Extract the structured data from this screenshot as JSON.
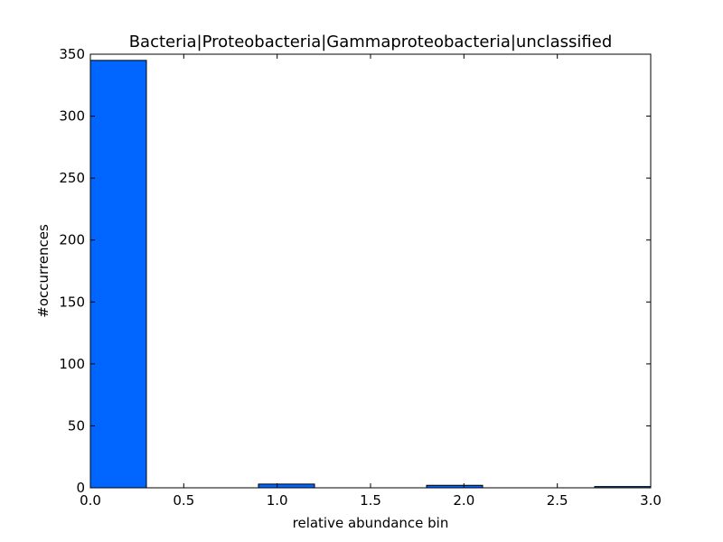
{
  "chart_data": {
    "type": "bar",
    "title": "Bacteria|Proteobacteria|Gammaproteobacteria|unclassified",
    "xlabel": "relative abundance bin",
    "ylabel": "#occurrences",
    "xlim": [
      0.0,
      3.0
    ],
    "ylim": [
      0,
      350
    ],
    "xticks": [
      "0.0",
      "0.5",
      "1.0",
      "1.5",
      "2.0",
      "2.5",
      "3.0"
    ],
    "yticks": [
      "0",
      "50",
      "100",
      "150",
      "200",
      "250",
      "300",
      "350"
    ],
    "bins": [
      {
        "x0": 0.0,
        "x1": 0.3,
        "value": 345
      },
      {
        "x0": 0.3,
        "x1": 0.6,
        "value": 0
      },
      {
        "x0": 0.6,
        "x1": 0.9,
        "value": 0
      },
      {
        "x0": 0.9,
        "x1": 1.2,
        "value": 3
      },
      {
        "x0": 1.2,
        "x1": 1.5,
        "value": 0
      },
      {
        "x0": 1.5,
        "x1": 1.8,
        "value": 0
      },
      {
        "x0": 1.8,
        "x1": 2.1,
        "value": 2
      },
      {
        "x0": 2.1,
        "x1": 2.4,
        "value": 0
      },
      {
        "x0": 2.4,
        "x1": 2.7,
        "value": 0
      },
      {
        "x0": 2.7,
        "x1": 3.0,
        "value": 1
      }
    ],
    "bar_color": "#0066ff",
    "edge_color": "#000000",
    "grid": false,
    "legend": "none"
  }
}
